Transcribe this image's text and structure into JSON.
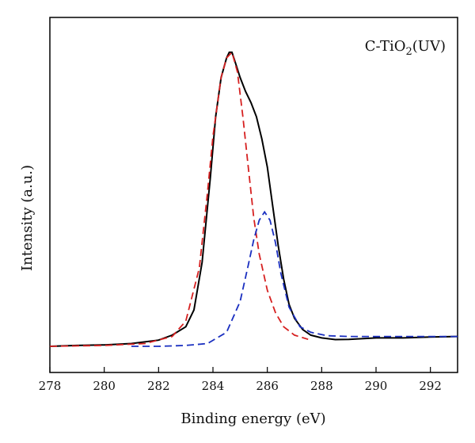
{
  "chart_data": {
    "type": "line",
    "title": "",
    "annotation": {
      "prefix": "C-TiO",
      "subscript": "2",
      "suffix": "(UV)"
    },
    "xlabel": "Binding energy (eV)",
    "ylabel": "Intensity (a.u.)",
    "xlim": [
      278,
      293
    ],
    "ylim": [
      0,
      1.07
    ],
    "x_ticks": [
      278,
      280,
      282,
      284,
      286,
      288,
      290,
      292
    ],
    "y_ticks_shown": false,
    "grid": false,
    "annotation_position": "top-right",
    "series": [
      {
        "color": "#000000",
        "style": "solid",
        "x": [
          278.0,
          279.0,
          280.0,
          281.0,
          282.0,
          282.5,
          283.0,
          283.3,
          283.6,
          283.9,
          284.1,
          284.3,
          284.5,
          284.6,
          284.7,
          284.8,
          284.9,
          285.0,
          285.2,
          285.4,
          285.6,
          285.8,
          286.0,
          286.2,
          286.4,
          286.6,
          286.8,
          287.0,
          287.3,
          287.6,
          288.0,
          288.5,
          289.0,
          290.0,
          291.0,
          292.0,
          293.0
        ],
        "y": [
          0.0,
          0.003,
          0.005,
          0.01,
          0.022,
          0.04,
          0.07,
          0.13,
          0.3,
          0.6,
          0.82,
          0.96,
          1.03,
          1.05,
          1.05,
          1.02,
          0.99,
          0.96,
          0.91,
          0.87,
          0.82,
          0.74,
          0.64,
          0.5,
          0.36,
          0.24,
          0.15,
          0.1,
          0.06,
          0.04,
          0.03,
          0.024,
          0.025,
          0.03,
          0.03,
          0.033,
          0.035
        ]
      },
      {
        "color": "#d62020",
        "style": "dashed",
        "x": [
          278.0,
          280.0,
          281.5,
          282.5,
          283.0,
          283.5,
          283.8,
          284.0,
          284.3,
          284.5,
          284.7,
          284.9,
          285.1,
          285.3,
          285.5,
          285.7,
          286.0,
          286.3,
          286.6,
          287.0,
          287.5
        ],
        "y": [
          0.0,
          0.003,
          0.01,
          0.035,
          0.09,
          0.28,
          0.55,
          0.75,
          0.96,
          1.03,
          1.05,
          0.98,
          0.82,
          0.64,
          0.46,
          0.33,
          0.2,
          0.12,
          0.07,
          0.04,
          0.025
        ]
      },
      {
        "color": "#1a2fc0",
        "style": "dashed",
        "x": [
          281.0,
          282.0,
          283.0,
          283.8,
          284.5,
          285.0,
          285.3,
          285.5,
          285.7,
          285.9,
          286.1,
          286.3,
          286.5,
          286.8,
          287.2,
          287.6,
          288.2,
          289.0,
          290.5,
          292.0,
          293.0
        ],
        "y": [
          0.0,
          0.0,
          0.003,
          0.01,
          0.05,
          0.16,
          0.29,
          0.38,
          0.45,
          0.48,
          0.45,
          0.37,
          0.26,
          0.14,
          0.07,
          0.05,
          0.038,
          0.035,
          0.035,
          0.035,
          0.035
        ]
      }
    ]
  }
}
